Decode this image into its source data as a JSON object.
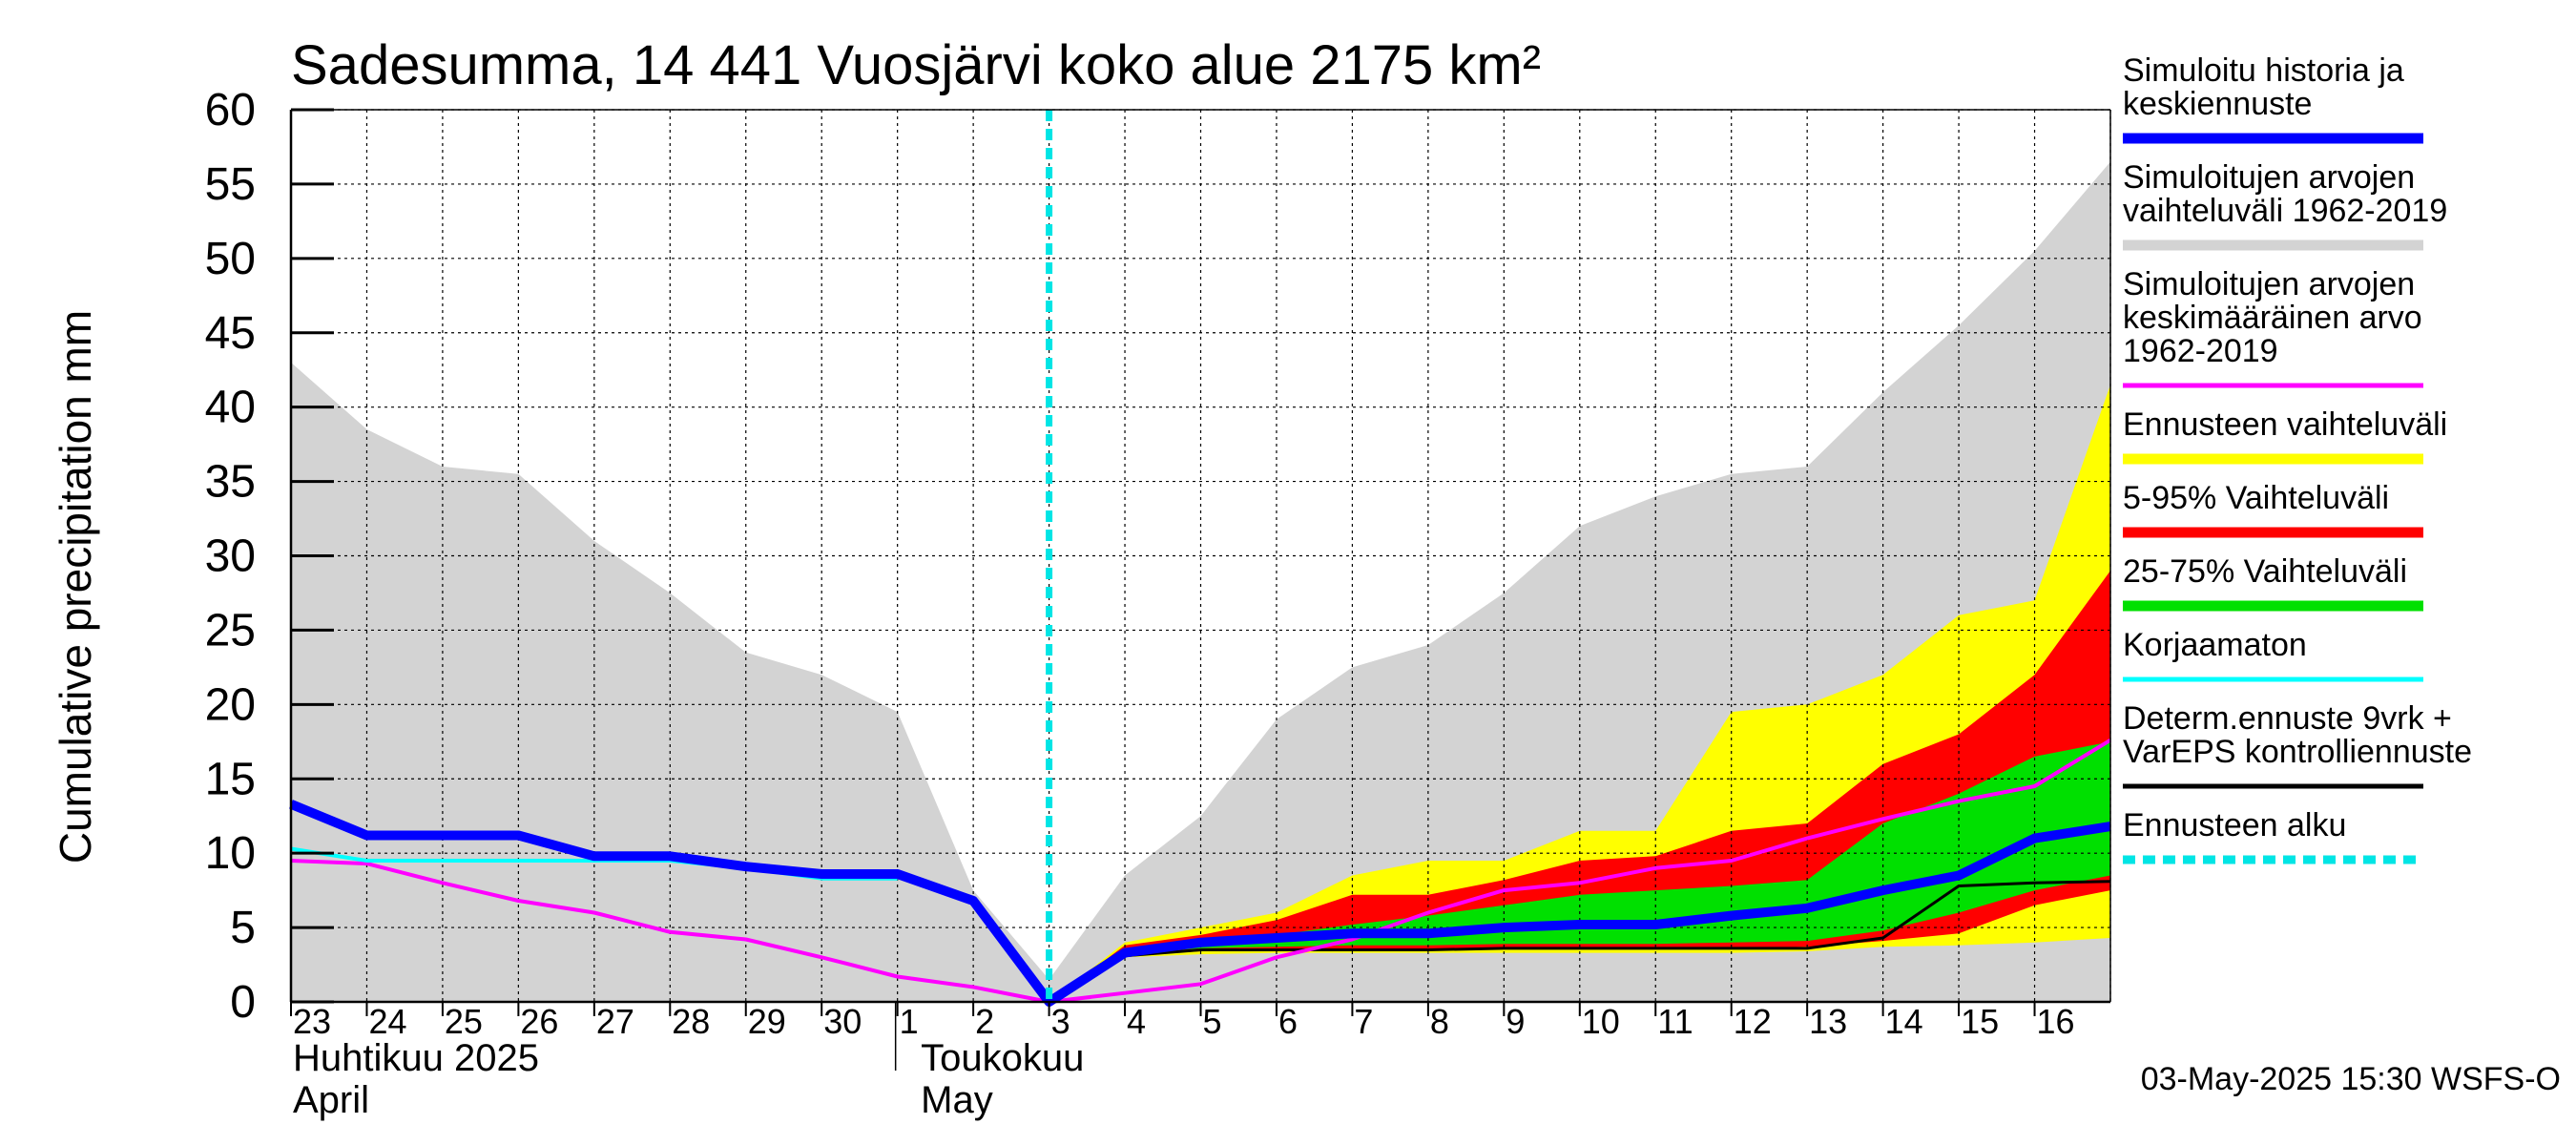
{
  "chart_data": {
    "type": "area",
    "title": "Sadesumma, 14 441 Vuosjärvi koko alue 2175 km²",
    "ylabel": "Cumulative precipitation   mm",
    "ylim": [
      0,
      60
    ],
    "yticks": [
      0,
      5,
      10,
      15,
      20,
      25,
      30,
      35,
      40,
      45,
      50,
      55,
      60
    ],
    "grid": true,
    "legend_position": "right",
    "x_dates": [
      "2025-04-23",
      "2025-04-24",
      "2025-04-25",
      "2025-04-26",
      "2025-04-27",
      "2025-04-28",
      "2025-04-29",
      "2025-04-30",
      "2025-05-01",
      "2025-05-02",
      "2025-05-03",
      "2025-05-04",
      "2025-05-05",
      "2025-05-06",
      "2025-05-07",
      "2025-05-08",
      "2025-05-09",
      "2025-05-10",
      "2025-05-11",
      "2025-05-12",
      "2025-05-13",
      "2025-05-14",
      "2025-05-15",
      "2025-05-16",
      "2025-05-17"
    ],
    "x_tick_labels": [
      "23",
      "24",
      "25",
      "26",
      "27",
      "28",
      "29",
      "30",
      "1",
      "2",
      "3",
      "4",
      "5",
      "6",
      "7",
      "8",
      "9",
      "10",
      "11",
      "12",
      "13",
      "14",
      "15",
      "16"
    ],
    "month_labels": {
      "april": [
        "Huhtikuu  2025",
        "April"
      ],
      "may": [
        "Toukokuu",
        "May"
      ]
    },
    "forecast_start": "2025-05-03",
    "series": {
      "historical_range": {
        "upper": [
          43,
          38.5,
          36,
          35.5,
          31,
          27.5,
          23.5,
          22,
          19.5,
          7.5,
          1.5,
          8.5,
          12.5,
          19,
          22.5,
          24,
          27.5,
          32,
          34,
          35.5,
          36,
          41,
          45.5,
          50.5,
          56.5
        ],
        "lower": [
          0,
          0,
          0,
          0,
          0,
          0,
          0,
          0,
          0,
          0,
          0,
          0,
          0,
          0,
          0,
          0,
          0,
          0,
          0,
          0,
          0,
          0,
          0,
          0,
          0
        ]
      },
      "ennuste_range": {
        "upper": [
          null,
          null,
          null,
          null,
          null,
          null,
          null,
          null,
          null,
          null,
          0,
          4,
          5,
          6,
          8.5,
          9.5,
          9.5,
          11.5,
          11.5,
          19.5,
          20,
          22,
          26,
          27,
          41.5
        ],
        "lower": [
          null,
          null,
          null,
          null,
          null,
          null,
          null,
          null,
          null,
          null,
          0,
          3,
          3.2,
          3.3,
          3.3,
          3.3,
          3.3,
          3.3,
          3.3,
          3.3,
          3.4,
          3.7,
          3.8,
          4,
          4.3
        ]
      },
      "range_5_95": {
        "upper": [
          null,
          null,
          null,
          null,
          null,
          null,
          null,
          null,
          null,
          null,
          0,
          3.8,
          4.5,
          5.5,
          7.2,
          7.2,
          8.2,
          9.5,
          9.8,
          11.5,
          12,
          16,
          18,
          22,
          29
        ],
        "lower": [
          null,
          null,
          null,
          null,
          null,
          null,
          null,
          null,
          null,
          null,
          0,
          3.1,
          3.4,
          3.5,
          3.5,
          3.5,
          3.6,
          3.6,
          3.6,
          3.6,
          3.7,
          4.1,
          4.6,
          6.5,
          7.5
        ]
      },
      "range_25_75": {
        "upper": [
          null,
          null,
          null,
          null,
          null,
          null,
          null,
          null,
          null,
          null,
          0,
          3.5,
          4,
          4.5,
          5.2,
          5.8,
          6.5,
          7.2,
          7.5,
          7.8,
          8.2,
          12,
          14,
          16.5,
          17.5
        ],
        "lower": [
          null,
          null,
          null,
          null,
          null,
          null,
          null,
          null,
          null,
          null,
          0,
          3.2,
          3.6,
          3.7,
          3.8,
          3.8,
          3.9,
          3.9,
          3.9,
          4,
          4.1,
          4.8,
          6,
          7.5,
          8.5
        ]
      },
      "history_median": [
        13.3,
        11.2,
        11.2,
        11.2,
        9.8,
        9.8,
        9.1,
        8.6,
        8.6,
        6.8,
        0,
        3.3,
        4,
        4.3,
        4.6,
        4.6,
        5,
        5.2,
        5.2,
        5.8,
        6.3,
        7.5,
        8.5,
        11,
        11.8
      ],
      "mean_1962_2019": [
        9.5,
        9.3,
        8,
        6.8,
        6,
        4.7,
        4.2,
        3,
        1.7,
        1,
        0,
        0.6,
        1.2,
        3,
        4.2,
        6,
        7.5,
        8,
        9,
        9.5,
        11,
        12.3,
        13.5,
        14.5,
        17.6
      ],
      "uncorrected": [
        10.3,
        9.5,
        9.5,
        9.5,
        9.5,
        9.5,
        9,
        8.3,
        8.3,
        null,
        null,
        null,
        null,
        null,
        null,
        null,
        null,
        null,
        null,
        null,
        null,
        null,
        null,
        null,
        null
      ],
      "deterministic": [
        null,
        null,
        null,
        null,
        null,
        null,
        null,
        null,
        null,
        null,
        0,
        3.1,
        3.5,
        3.5,
        3.5,
        3.5,
        3.6,
        3.6,
        3.6,
        3.6,
        3.6,
        4.3,
        7.8,
        8,
        8.1
      ]
    },
    "series_names": {
      "history_median": "Simuloitu historia ja keskiennuste",
      "historical_range": "Simuloitujen arvojen vaihteluväli 1962-2019",
      "mean_1962_2019": "Simuloitujen arvojen keskimääräinen arvo 1962-2019",
      "ennuste_range": "Ennusteen vaihteluväli",
      "range_5_95": "5-95% Vaihteluväli",
      "range_25_75": "25-75% Vaihteluväli",
      "uncorrected": "Korjaamaton",
      "deterministic": "Determ.ennuste 9vrk + VarEPS kontrolliennuste",
      "forecast_start": "Ennusteen alku"
    },
    "colors": {
      "history_median": "#0000ff",
      "historical_range": "#d3d3d3",
      "mean_1962_2019": "#ff00ff",
      "ennuste_range": "#ffff00",
      "range_5_95": "#ff0000",
      "range_25_75": "#00e000",
      "uncorrected": "#00ffff",
      "deterministic": "#000000",
      "forecast_start": "#00e5e5"
    }
  },
  "legend": [
    {
      "key": "history_median",
      "lines": [
        "Simuloitu historia ja",
        "keskiennuste"
      ],
      "style": "thick",
      "color": "#0000ff"
    },
    {
      "key": "historical_range",
      "lines": [
        "Simuloitujen arvojen",
        "vaihteluväli 1962-2019"
      ],
      "style": "thick",
      "color": "#d3d3d3"
    },
    {
      "key": "mean_1962_2019",
      "lines": [
        "Simuloitujen arvojen",
        "keskimääräinen arvo",
        "   1962-2019"
      ],
      "style": "thin",
      "color": "#ff00ff"
    },
    {
      "key": "ennuste_range",
      "lines": [
        "Ennusteen vaihteluväli"
      ],
      "style": "thick",
      "color": "#ffff00"
    },
    {
      "key": "range_5_95",
      "lines": [
        "5-95% Vaihteluväli"
      ],
      "style": "thick",
      "color": "#ff0000"
    },
    {
      "key": "range_25_75",
      "lines": [
        "25-75% Vaihteluväli"
      ],
      "style": "thick",
      "color": "#00e000"
    },
    {
      "key": "uncorrected",
      "lines": [
        "Korjaamaton"
      ],
      "style": "thin",
      "color": "#00ffff"
    },
    {
      "key": "deterministic",
      "lines": [
        "Determ.ennuste 9vrk +",
        "VarEPS kontrolliennuste"
      ],
      "style": "thin",
      "color": "#000000"
    },
    {
      "key": "forecast_start",
      "lines": [
        "Ennusteen alku"
      ],
      "style": "dashed",
      "color": "#00e5e5"
    }
  ],
  "timestamp": "03-May-2025 15:30 WSFS-O"
}
